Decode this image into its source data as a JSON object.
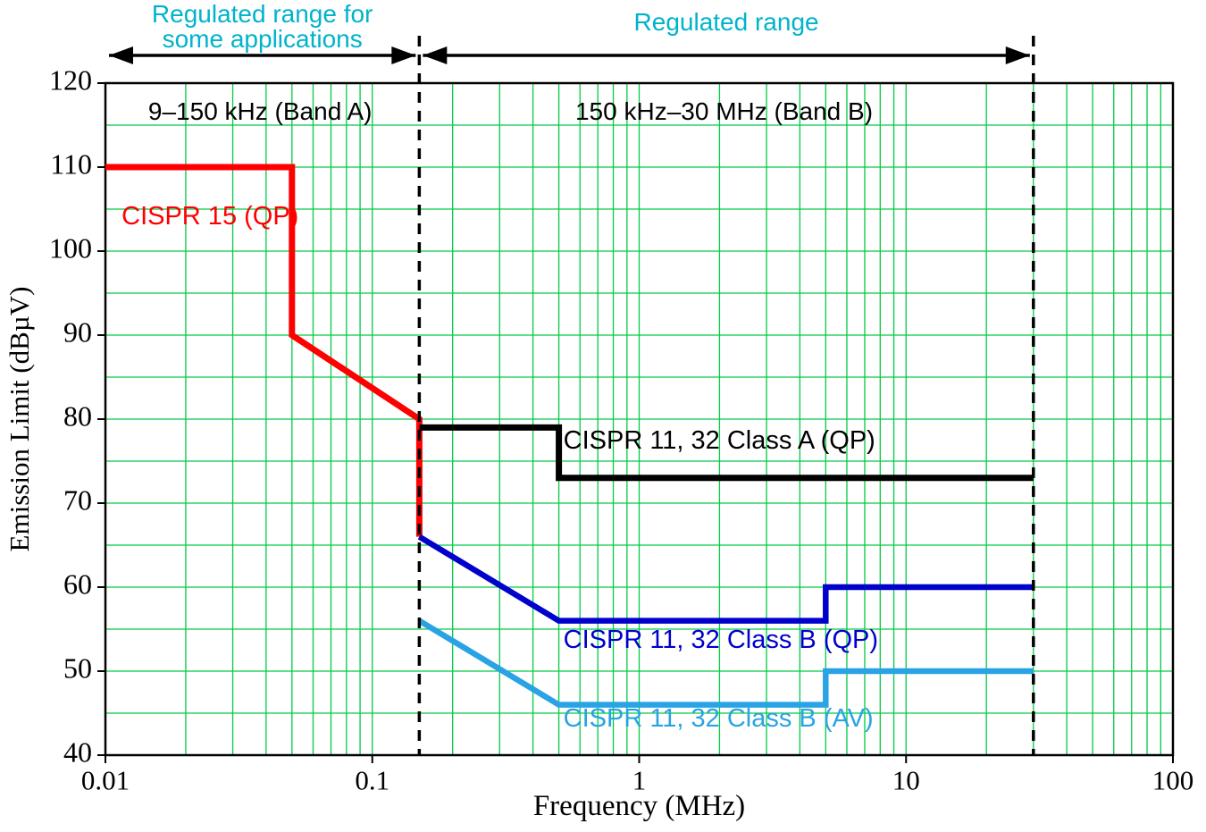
{
  "chart_data": {
    "type": "line",
    "title": "",
    "xlabel": "Frequency (MHz)",
    "ylabel": "Emission Limit (dBµV)",
    "x_scale": "log",
    "xlim": [
      0.01,
      100
    ],
    "ylim": [
      40,
      120
    ],
    "x_ticks": [
      {
        "value": 0.01,
        "label": "0.01"
      },
      {
        "value": 0.1,
        "label": "0.1"
      },
      {
        "value": 1,
        "label": "1"
      },
      {
        "value": 10,
        "label": "10"
      },
      {
        "value": 100,
        "label": "100"
      }
    ],
    "y_ticks": [
      {
        "value": 40,
        "label": "40"
      },
      {
        "value": 50,
        "label": "50"
      },
      {
        "value": 60,
        "label": "60"
      },
      {
        "value": 70,
        "label": "70"
      },
      {
        "value": 80,
        "label": "80"
      },
      {
        "value": 90,
        "label": "90"
      },
      {
        "value": 100,
        "label": "100"
      },
      {
        "value": 110,
        "label": "110"
      },
      {
        "value": 120,
        "label": "120"
      }
    ],
    "grid": {
      "show": true,
      "color": "#00cc44",
      "minor_y_step": 5,
      "major_y_step": 10
    },
    "dividers_mhz": [
      0.15,
      30
    ],
    "ranges": [
      {
        "from": 0.01,
        "to": 0.15,
        "label_lines": [
          "Regulated range for",
          "some applications"
        ]
      },
      {
        "from": 0.15,
        "to": 30,
        "label_lines": [
          "Regulated range"
        ]
      }
    ],
    "range_label_color": "#00b3cc",
    "band_labels": [
      {
        "text": "9–150 kHz (Band A)",
        "x": 0.038,
        "y": 116.4
      },
      {
        "text": "150 kHz–30 MHz (Band B)",
        "x": 2.08,
        "y": 116.4
      }
    ],
    "series": [
      {
        "name": "CISPR 15 (QP)",
        "color": "#ff0000",
        "width": 7,
        "points": [
          [
            0.01,
            110
          ],
          [
            0.05,
            110
          ],
          [
            0.05,
            90
          ],
          [
            0.15,
            80
          ],
          [
            0.15,
            66
          ]
        ],
        "label": {
          "text": "CISPR 15 (QP)",
          "x": 0.0115,
          "y": 104,
          "anchor": "start"
        }
      },
      {
        "name": "CISPR 11, 32 Class A (QP)",
        "color": "#000000",
        "width": 7,
        "points": [
          [
            0.15,
            79
          ],
          [
            0.5,
            79
          ],
          [
            0.5,
            73
          ],
          [
            30,
            73
          ]
        ],
        "label": {
          "text": "CISPR 11, 32 Class A (QP)",
          "x": 0.52,
          "y": 77.3,
          "anchor": "start"
        }
      },
      {
        "name": "CISPR 11, 32 Class B (QP)",
        "color": "#0000cc",
        "width": 6.5,
        "points": [
          [
            0.15,
            66
          ],
          [
            0.5,
            56
          ],
          [
            5,
            56
          ],
          [
            5,
            60
          ],
          [
            30,
            60
          ]
        ],
        "label": {
          "text": "CISPR 11, 32 Class B (QP)",
          "x": 0.52,
          "y": 53.6,
          "anchor": "start"
        }
      },
      {
        "name": "CISPR 11, 32 Class B (AV)",
        "color": "#29a3e3",
        "width": 6.5,
        "points": [
          [
            0.15,
            56
          ],
          [
            0.5,
            46
          ],
          [
            5,
            46
          ],
          [
            5,
            50
          ],
          [
            30,
            50
          ]
        ],
        "label": {
          "text": "CISPR 11, 32 Class B (AV)",
          "x": 0.52,
          "y": 44.2,
          "anchor": "start"
        }
      }
    ]
  }
}
